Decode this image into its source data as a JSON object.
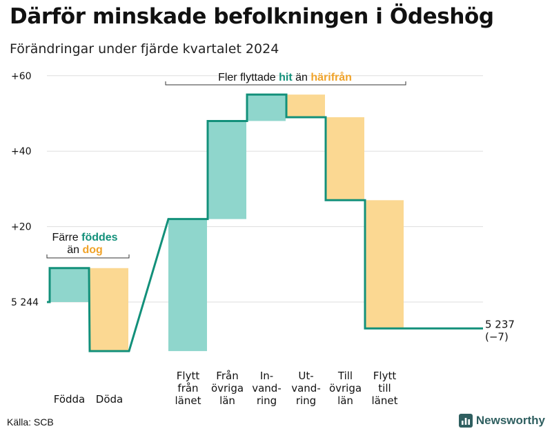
{
  "title": "Därför minskade befolkningen i Ödeshög",
  "subtitle": "Förändringar under fjärde kvartalet 2024",
  "source": "Källa: SCB",
  "brand": {
    "name": "Newsworthy",
    "icon": "newsworthy-logo-icon"
  },
  "colors": {
    "increase": "#8fd6cc",
    "decrease": "#fbd892",
    "line": "#12907a",
    "hit": "#12907a",
    "harifran": "#f0a32a",
    "grid": "#dddddd"
  },
  "chart_data": {
    "type": "waterfall",
    "title": "Därför minskade befolkningen i Ödeshög",
    "subtitle": "Förändringar under fjärde kvartalet 2024",
    "start": 5244,
    "end": 5237,
    "end_label": "5 237",
    "change_label": "(−7)",
    "ylim": [
      -13,
      60
    ],
    "yticks": [
      {
        "value": 0,
        "label": "5 244"
      },
      {
        "value": 20,
        "label": "+20"
      },
      {
        "value": 40,
        "label": "+40"
      },
      {
        "value": 60,
        "label": "+60"
      }
    ],
    "grid": true,
    "categories": [
      {
        "label": [
          "Födda"
        ],
        "value": 9
      },
      {
        "label": [
          "Döda"
        ],
        "value": -22
      },
      {
        "label": [
          "Flytt",
          "från",
          "länet"
        ],
        "value": 35
      },
      {
        "label": [
          "Från",
          "övriga",
          "län"
        ],
        "value": 26
      },
      {
        "label": [
          "In-",
          "vand-",
          "ring"
        ],
        "value": 7
      },
      {
        "label": [
          "Ut-",
          "vand-",
          "ring"
        ],
        "value": -6
      },
      {
        "label": [
          "Till",
          "övriga",
          "län"
        ],
        "value": -22
      },
      {
        "label": [
          "Flytt",
          "till",
          "länet"
        ],
        "value": -34
      }
    ],
    "annotations": [
      {
        "text": [
          "Färre",
          "föddes",
          "än",
          "dog"
        ],
        "highlight": [
          "föddes",
          "dog"
        ],
        "span": [
          0,
          1
        ]
      },
      {
        "text": [
          "Fler flyttade",
          "hit",
          "än",
          "härifrån"
        ],
        "highlight": [
          "hit",
          "härifrån"
        ],
        "span": [
          2,
          7
        ]
      }
    ]
  }
}
